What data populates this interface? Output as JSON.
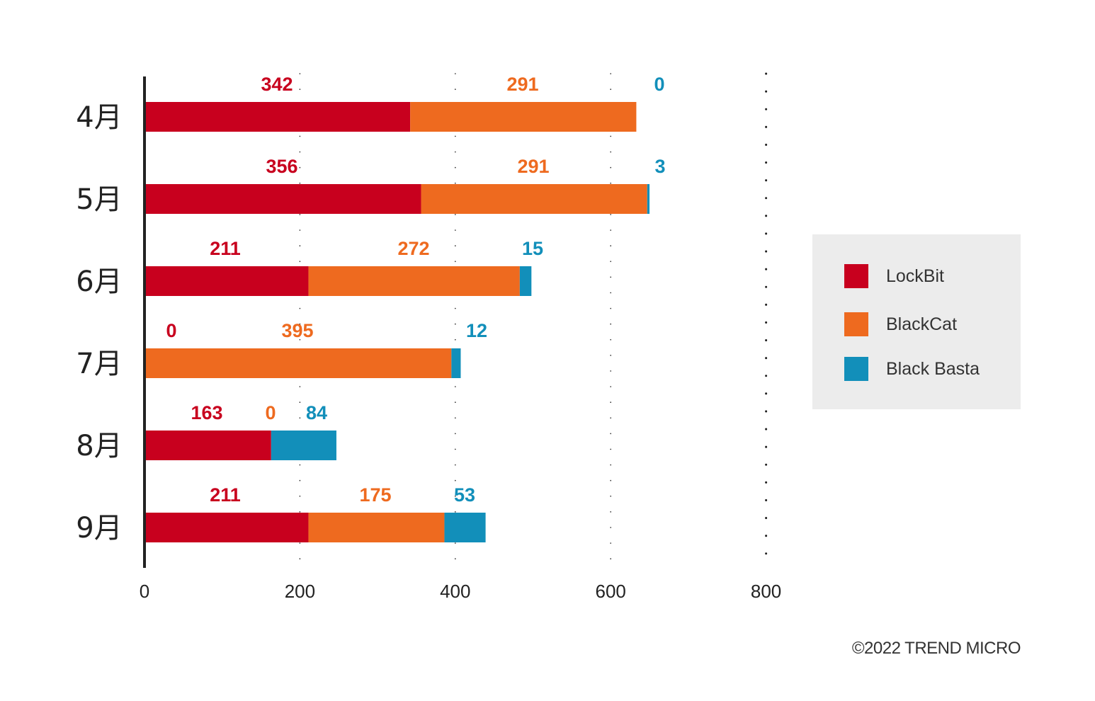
{
  "chart_data": {
    "type": "bar",
    "orientation": "horizontal",
    "stacked": true,
    "categories": [
      "4月",
      "5月",
      "6月",
      "7月",
      "8月",
      "9月"
    ],
    "series": [
      {
        "name": "LockBit",
        "values": [
          342,
          356,
          211,
          0,
          163,
          211
        ],
        "color": "#c8001e"
      },
      {
        "name": "BlackCat",
        "values": [
          291,
          291,
          272,
          395,
          0,
          175
        ],
        "color": "#ee6a1f"
      },
      {
        "name": "Black Basta",
        "values": [
          0,
          3,
          15,
          12,
          84,
          53
        ],
        "color": "#128fba"
      }
    ],
    "xticks": [
      "0",
      "200",
      "400",
      "600",
      "800"
    ],
    "xlim": [
      0,
      800
    ],
    "grid": true,
    "legend_position": "right"
  },
  "legend": {
    "items": [
      {
        "label": "LockBit",
        "color": "#c8001e"
      },
      {
        "label": "BlackCat",
        "color": "#ee6a1f"
      },
      {
        "label": "Black Basta",
        "color": "#128fba"
      }
    ]
  },
  "copyright": "©2022 TREND MICRO"
}
